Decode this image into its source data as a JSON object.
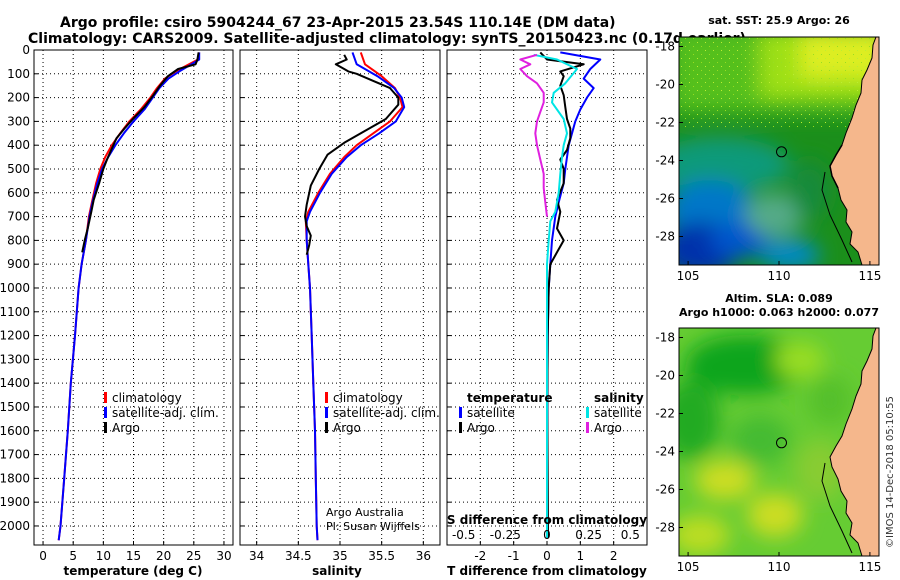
{
  "title": {
    "line1": "Argo profile: csiro 5904244_67 23-Apr-2015 23.54S 110.14E (DM data)",
    "line2": "Climatology: CARS2009. Satellite-adjusted climatology: synTS_20150423.nc (0.17d earlier)"
  },
  "colors": {
    "climatology": "#ff0000",
    "satellite": "#0000ff",
    "argo": "#000000",
    "sal_satellite": "#00e5e5",
    "sal_argo": "#e020e0"
  },
  "depth_axis": {
    "ylim": [
      0,
      2080
    ],
    "ticks": [
      0,
      100,
      200,
      300,
      400,
      500,
      600,
      700,
      800,
      900,
      1000,
      1100,
      1200,
      1300,
      1400,
      1500,
      1600,
      1700,
      1800,
      1900,
      2000
    ]
  },
  "chart_data": [
    {
      "type": "line",
      "id": "temperature",
      "xlabel": "temperature (deg C)",
      "xlim": [
        -1.5,
        31.5
      ],
      "xticks": [
        0,
        5,
        10,
        15,
        20,
        25,
        30
      ],
      "legend": {
        "placement": "lower-center",
        "entries": [
          "climatology",
          "satellite-adj. clim.",
          "Argo"
        ]
      },
      "series": [
        {
          "name": "climatology",
          "color": "#ff0000",
          "points": [
            [
              25.9,
              10
            ],
            [
              25.7,
              40
            ],
            [
              24.2,
              60
            ],
            [
              22,
              90
            ],
            [
              20.2,
              120
            ],
            [
              18.9,
              160
            ],
            [
              17.8,
              200
            ],
            [
              16.2,
              250
            ],
            [
              14.3,
              300
            ],
            [
              12.8,
              350
            ],
            [
              11.4,
              400
            ],
            [
              10.3,
              450
            ],
            [
              9.5,
              500
            ],
            [
              8.8,
              560
            ],
            [
              8.1,
              640
            ],
            [
              7.6,
              700
            ],
            [
              7.1,
              800
            ],
            [
              6.4,
              900
            ],
            [
              5.9,
              1000
            ],
            [
              5.3,
              1200
            ],
            [
              4.6,
              1400
            ],
            [
              4.1,
              1600
            ],
            [
              3.5,
              1800
            ],
            [
              2.9,
              2000
            ],
            [
              2.6,
              2060
            ]
          ]
        },
        {
          "name": "satellite-adj. clim.",
          "color": "#0000ff",
          "points": [
            [
              25.9,
              10
            ],
            [
              25.9,
              40
            ],
            [
              24.6,
              60
            ],
            [
              22.6,
              90
            ],
            [
              20.8,
              120
            ],
            [
              19.3,
              160
            ],
            [
              18.2,
              200
            ],
            [
              16.8,
              250
            ],
            [
              15,
              300
            ],
            [
              13.4,
              350
            ],
            [
              12,
              400
            ],
            [
              10.8,
              450
            ],
            [
              9.8,
              500
            ],
            [
              9,
              560
            ],
            [
              8.2,
              640
            ],
            [
              7.7,
              700
            ],
            [
              7.1,
              800
            ],
            [
              6.4,
              900
            ],
            [
              5.9,
              1000
            ],
            [
              5.3,
              1200
            ],
            [
              4.6,
              1400
            ],
            [
              4.1,
              1600
            ],
            [
              3.5,
              1800
            ],
            [
              2.9,
              2000
            ],
            [
              2.6,
              2060
            ]
          ]
        },
        {
          "name": "Argo",
          "color": "#000000",
          "points": [
            [
              25.8,
              10
            ],
            [
              25.6,
              40
            ],
            [
              25.3,
              60
            ],
            [
              22.4,
              80
            ],
            [
              20.7,
              110
            ],
            [
              19.4,
              150
            ],
            [
              18.3,
              190
            ],
            [
              16.8,
              240
            ],
            [
              14.9,
              290
            ],
            [
              13.5,
              330
            ],
            [
              12.2,
              370
            ],
            [
              11.3,
              420
            ],
            [
              10.6,
              460
            ],
            [
              10,
              500
            ],
            [
              9.3,
              560
            ],
            [
              8.4,
              630
            ],
            [
              8,
              680
            ],
            [
              7.4,
              750
            ],
            [
              6.9,
              800
            ],
            [
              6.5,
              850
            ]
          ]
        }
      ]
    },
    {
      "type": "line",
      "id": "salinity",
      "xlabel": "salinity",
      "xlim": [
        33.8,
        36.2
      ],
      "xticks": [
        34,
        34.5,
        35,
        35.5,
        36
      ],
      "legend": {
        "placement": "lower-right",
        "entries": [
          "climatology",
          "satellite-adj. clim.",
          "Argo"
        ]
      },
      "credit": [
        "Argo Australia",
        "PI: Susan Wijffels"
      ],
      "series": [
        {
          "name": "climatology",
          "color": "#ff0000",
          "points": [
            [
              35.25,
              10
            ],
            [
              35.3,
              60
            ],
            [
              35.5,
              110
            ],
            [
              35.66,
              160
            ],
            [
              35.72,
              200
            ],
            [
              35.75,
              240
            ],
            [
              35.6,
              300
            ],
            [
              35.4,
              350
            ],
            [
              35.2,
              400
            ],
            [
              35.05,
              450
            ],
            [
              34.88,
              520
            ],
            [
              34.74,
              600
            ],
            [
              34.62,
              680
            ],
            [
              34.59,
              720
            ],
            [
              34.6,
              800
            ],
            [
              34.62,
              900
            ],
            [
              34.64,
              1000
            ],
            [
              34.66,
              1200
            ],
            [
              34.68,
              1400
            ],
            [
              34.7,
              1600
            ],
            [
              34.71,
              1800
            ],
            [
              34.72,
              2000
            ],
            [
              34.73,
              2060
            ]
          ]
        },
        {
          "name": "satellite-adj. clim.",
          "color": "#0000ff",
          "points": [
            [
              35.15,
              10
            ],
            [
              35.2,
              60
            ],
            [
              35.45,
              110
            ],
            [
              35.65,
              160
            ],
            [
              35.74,
              200
            ],
            [
              35.77,
              240
            ],
            [
              35.67,
              300
            ],
            [
              35.47,
              350
            ],
            [
              35.25,
              400
            ],
            [
              35.08,
              450
            ],
            [
              34.9,
              520
            ],
            [
              34.76,
              600
            ],
            [
              34.64,
              680
            ],
            [
              34.6,
              720
            ],
            [
              34.6,
              800
            ],
            [
              34.62,
              900
            ],
            [
              34.64,
              1000
            ],
            [
              34.66,
              1200
            ],
            [
              34.68,
              1400
            ],
            [
              34.7,
              1600
            ],
            [
              34.71,
              1800
            ],
            [
              34.72,
              2000
            ],
            [
              34.73,
              2060
            ]
          ]
        },
        {
          "name": "Argo",
          "color": "#000000",
          "points": [
            [
              35.05,
              20
            ],
            [
              35.08,
              40
            ],
            [
              34.95,
              60
            ],
            [
              35.05,
              80
            ],
            [
              35.1,
              90
            ],
            [
              35.2,
              100
            ],
            [
              35.4,
              130
            ],
            [
              35.6,
              160
            ],
            [
              35.7,
              200
            ],
            [
              35.7,
              230
            ],
            [
              35.55,
              290
            ],
            [
              35.3,
              340
            ],
            [
              35.05,
              390
            ],
            [
              34.85,
              440
            ],
            [
              34.75,
              500
            ],
            [
              34.65,
              570
            ],
            [
              34.6,
              650
            ],
            [
              34.58,
              700
            ],
            [
              34.6,
              740
            ],
            [
              34.65,
              780
            ],
            [
              34.63,
              820
            ],
            [
              34.6,
              860
            ]
          ]
        }
      ]
    },
    {
      "type": "line",
      "id": "difference",
      "xlabel": "T difference from climatology",
      "xlabel_top": "S difference from climatology",
      "xlim": [
        -3,
        3
      ],
      "xticks": [
        -2,
        -1,
        0,
        1,
        2
      ],
      "xtick_labels": [
        "-2",
        "-1",
        "0",
        "1",
        "2"
      ],
      "top_xticks": [
        -0.5,
        -0.25,
        0,
        0.25,
        0.5
      ],
      "top_xtick_labels": [
        "-0.5",
        "-0.25",
        "0",
        "0.25",
        "0.5"
      ],
      "legend": {
        "left_header": "temperature",
        "right_header": "salinity",
        "left_entries": [
          "satellite",
          "Argo"
        ],
        "right_entries": [
          "satellite",
          "Argo"
        ]
      },
      "series": [
        {
          "name": "temperature satellite",
          "color": "#0000ff",
          "points": [
            [
              0.4,
              10
            ],
            [
              1.6,
              40
            ],
            [
              1.3,
              80
            ],
            [
              1.1,
              120
            ],
            [
              1.4,
              160
            ],
            [
              1.2,
              200
            ],
            [
              1,
              250
            ],
            [
              0.85,
              300
            ],
            [
              0.75,
              350
            ],
            [
              0.65,
              400
            ],
            [
              0.6,
              450
            ],
            [
              0.55,
              500
            ],
            [
              0.5,
              560
            ],
            [
              0.35,
              640
            ],
            [
              0.25,
              700
            ],
            [
              0.15,
              800
            ],
            [
              0.1,
              900
            ],
            [
              0.05,
              1000
            ],
            [
              0.02,
              1200
            ],
            [
              0.01,
              1500
            ],
            [
              0,
              1800
            ],
            [
              0,
              2050
            ]
          ]
        },
        {
          "name": "temperature Argo",
          "color": "#000000",
          "points": [
            [
              -0.2,
              10
            ],
            [
              0,
              40
            ],
            [
              1.1,
              60
            ],
            [
              0.4,
              90
            ],
            [
              0.5,
              110
            ],
            [
              0.4,
              150
            ],
            [
              0.5,
              190
            ],
            [
              0.55,
              240
            ],
            [
              0.6,
              290
            ],
            [
              0.7,
              330
            ],
            [
              0.7,
              370
            ],
            [
              0.6,
              420
            ],
            [
              0.4,
              460
            ],
            [
              0.5,
              500
            ],
            [
              0.5,
              560
            ],
            [
              0.3,
              630
            ],
            [
              0.4,
              680
            ],
            [
              0.3,
              750
            ],
            [
              0.5,
              800
            ],
            [
              0.3,
              850
            ],
            [
              0.1,
              900
            ],
            [
              0.05,
              1000
            ],
            [
              0.02,
              1200
            ],
            [
              0.01,
              1500
            ],
            [
              0.02,
              1800
            ],
            [
              0.03,
              2050
            ]
          ]
        },
        {
          "name": "salinity satellite",
          "color": "#00e5e5",
          "points": [
            [
              -0.4,
              20
            ],
            [
              0.3,
              40
            ],
            [
              0.9,
              80
            ],
            [
              0.55,
              140
            ],
            [
              0.2,
              180
            ],
            [
              0.15,
              220
            ],
            [
              0.5,
              290
            ],
            [
              0.6,
              350
            ],
            [
              0.5,
              400
            ],
            [
              0.45,
              450
            ],
            [
              0.4,
              520
            ],
            [
              0.35,
              600
            ],
            [
              0.25,
              680
            ],
            [
              0.1,
              720
            ],
            [
              0.05,
              800
            ],
            [
              0,
              900
            ],
            [
              0,
              1000
            ],
            [
              0,
              1200
            ],
            [
              0,
              1500
            ],
            [
              0,
              1800
            ],
            [
              0,
              2050
            ]
          ]
        },
        {
          "name": "salinity Argo",
          "color": "#e020e0",
          "points": [
            [
              -0.3,
              20
            ],
            [
              -0.8,
              40
            ],
            [
              -0.5,
              60
            ],
            [
              -0.8,
              80
            ],
            [
              -0.6,
              110
            ],
            [
              -0.3,
              140
            ],
            [
              -0.1,
              180
            ],
            [
              -0.1,
              220
            ],
            [
              -0.2,
              260
            ],
            [
              -0.3,
              300
            ],
            [
              -0.35,
              350
            ],
            [
              -0.3,
              400
            ],
            [
              -0.2,
              460
            ],
            [
              -0.1,
              520
            ],
            [
              -0.1,
              580
            ],
            [
              -0.05,
              640
            ],
            [
              0,
              700
            ]
          ]
        }
      ]
    },
    {
      "type": "heatmap",
      "id": "sst-map",
      "title": "sat. SST: 25.9 Argo: 26",
      "xlim": [
        104.5,
        115.5
      ],
      "ylim": [
        -29.5,
        -17.5
      ],
      "xticks": [
        105,
        110,
        115
      ],
      "yticks": [
        -18,
        -20,
        -22,
        -24,
        -26,
        -28
      ],
      "marker": {
        "lon": 110.14,
        "lat": -23.54
      }
    },
    {
      "type": "heatmap",
      "id": "sla-map",
      "title_line1": "Altim. SLA: 0.089",
      "title_line2": "Argo h1000: 0.063 h2000: 0.077",
      "xlim": [
        104.5,
        115.5
      ],
      "ylim": [
        -29.5,
        -17.5
      ],
      "xticks": [
        105,
        110,
        115
      ],
      "yticks": [
        -18,
        -20,
        -22,
        -24,
        -26,
        -28
      ],
      "marker": {
        "lon": 110.14,
        "lat": -23.54
      }
    }
  ],
  "copyright": "©IMOS 14-Dec-2018 05:10:55"
}
